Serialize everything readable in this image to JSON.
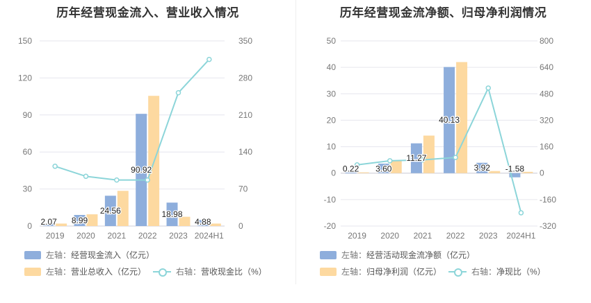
{
  "chart_data": [
    {
      "type": "bar",
      "title": "历年经营现金流入、营业收入情况",
      "categories": [
        "2019",
        "2020",
        "2021",
        "2022",
        "2023",
        "2024H1"
      ],
      "left_axis": {
        "ticks": [
          "0",
          "30",
          "60",
          "90",
          "120",
          "150"
        ],
        "ylim": [
          0,
          150
        ]
      },
      "right_axis": {
        "ticks": [
          "0",
          "70",
          "140",
          "210",
          "280",
          "350"
        ],
        "ylim": [
          0,
          350
        ]
      },
      "series": [
        {
          "name": "经营现金流入（亿元）",
          "axis": "左轴",
          "type": "bar",
          "color": "#8eaedc",
          "values": [
            2.07,
            8.99,
            24.56,
            90.92,
            18.98,
            4.88
          ],
          "labels": [
            "2.07",
            "8.99",
            "24.56",
            "90.92",
            "18.98",
            "4.88"
          ]
        },
        {
          "name": "营业总收入（亿元）",
          "axis": "左轴",
          "type": "bar",
          "color": "#fdd9a0",
          "values": [
            2.0,
            9.5,
            28.5,
            105.5,
            7.5,
            2.0
          ]
        },
        {
          "name": "营收现金比（%）",
          "axis": "右轴",
          "type": "line",
          "color": "#8cd5d9",
          "values": [
            113,
            94,
            87,
            87,
            252,
            315
          ]
        }
      ],
      "legend": [
        {
          "prefix": "左轴：",
          "text": "经营现金流入（亿元）",
          "kind": "bar",
          "color": "#8eaedc"
        },
        {
          "prefix": "左轴：",
          "text": "营业总收入（亿元）",
          "kind": "bar",
          "color": "#fdd9a0"
        },
        {
          "prefix": "右轴：",
          "text": "营收现金比（%）",
          "kind": "line",
          "color": "#8cd5d9"
        }
      ],
      "grid": true,
      "legend_position": "bottom"
    },
    {
      "type": "bar",
      "title": "历年经营现金流净额、归母净利润情况",
      "categories": [
        "2019",
        "2020",
        "2021",
        "2022",
        "2023",
        "2024H1"
      ],
      "left_axis": {
        "ticks": [
          "-20",
          "-10",
          "0",
          "10",
          "20",
          "30",
          "40",
          "50"
        ],
        "ylim": [
          -20,
          50
        ]
      },
      "right_axis": {
        "ticks": [
          "-320",
          "-160",
          "0",
          "160",
          "320",
          "480",
          "640",
          "800"
        ],
        "ylim": [
          -320,
          800
        ]
      },
      "series": [
        {
          "name": "经营活动现金流净额（亿元）",
          "axis": "左轴",
          "type": "bar",
          "color": "#8eaedc",
          "values": [
            0.22,
            3.6,
            11.27,
            40.13,
            3.92,
            -1.58
          ],
          "labels": [
            "0.22",
            "3.60",
            "11.27",
            "40.13",
            "3.92",
            "-1.58"
          ]
        },
        {
          "name": "归母净利润（亿元）",
          "axis": "左轴",
          "type": "bar",
          "color": "#fdd9a0",
          "values": [
            0.3,
            4.8,
            14.2,
            42.0,
            0.8,
            0.5
          ]
        },
        {
          "name": "净现比（%）",
          "axis": "右轴",
          "type": "line",
          "color": "#8cd5d9",
          "values": [
            50,
            75,
            80,
            95,
            515,
            -240
          ]
        }
      ],
      "legend": [
        {
          "prefix": "左轴：",
          "text": "经营活动现金流净额（亿元）",
          "kind": "bar",
          "color": "#8eaedc"
        },
        {
          "prefix": "左轴：",
          "text": "归母净利润（亿元）",
          "kind": "bar",
          "color": "#fdd9a0"
        },
        {
          "prefix": "右轴：",
          "text": "净现比（%）",
          "kind": "line",
          "color": "#8cd5d9"
        }
      ],
      "grid": true,
      "legend_position": "bottom"
    }
  ]
}
